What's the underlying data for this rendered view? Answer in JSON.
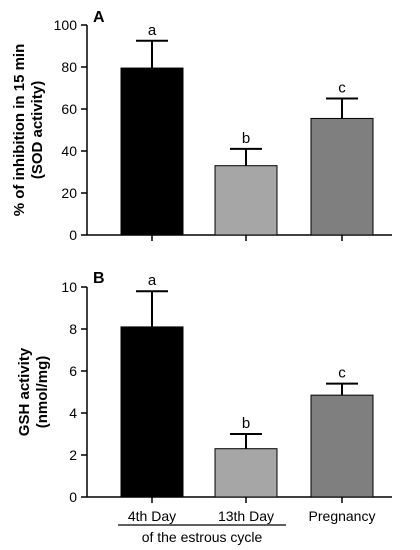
{
  "chart_data": [
    {
      "type": "bar",
      "panel": "A",
      "categories": [
        "4th Day",
        "13th Day",
        "Pregnancy"
      ],
      "values": [
        79.5,
        33,
        55.5
      ],
      "errors": [
        13,
        8,
        9.5
      ],
      "significance": [
        "a",
        "b",
        "c"
      ],
      "bar_colors": [
        "#000000",
        "#a6a6a6",
        "#7f7f7f"
      ],
      "ylabel_lines": [
        "% of inhibition in 15 min",
        "(SOD activity)"
      ],
      "ylim": [
        0,
        100
      ],
      "yticks": [
        "0",
        "20",
        "40",
        "60",
        "80",
        "100"
      ],
      "show_xticklabels": false
    },
    {
      "type": "bar",
      "panel": "B",
      "categories": [
        "4th Day",
        "13th Day",
        "Pregnancy"
      ],
      "values": [
        8.1,
        2.3,
        4.85
      ],
      "errors": [
        1.7,
        0.7,
        0.55
      ],
      "significance": [
        "a",
        "b",
        "c"
      ],
      "bar_colors": [
        "#000000",
        "#a6a6a6",
        "#7f7f7f"
      ],
      "ylabel_lines": [
        "GSH activity",
        "(nmol/mg)"
      ],
      "ylim": [
        0,
        10
      ],
      "yticks": [
        "0",
        "2",
        "4",
        "6",
        "8",
        "10"
      ],
      "show_xticklabels": true
    }
  ],
  "group_label": "of the estrous cycle"
}
